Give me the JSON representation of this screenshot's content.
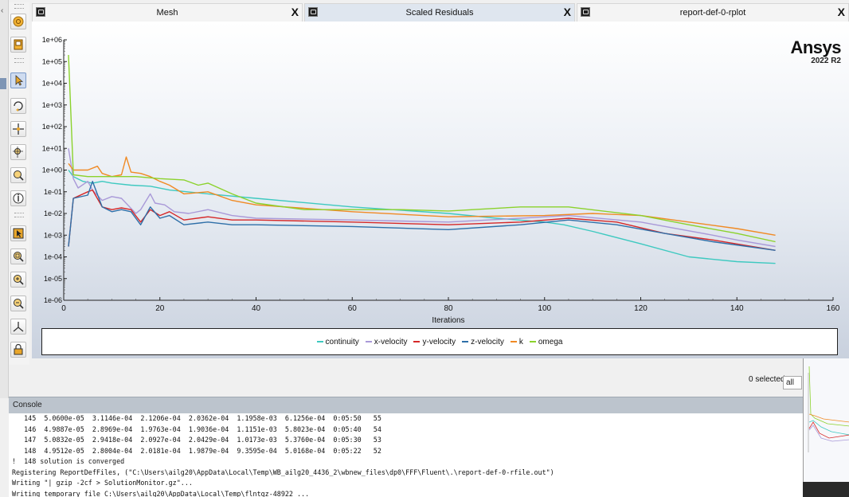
{
  "tabs": [
    {
      "label": "Mesh"
    },
    {
      "label": "Scaled Residuals"
    },
    {
      "label": "report-def-0-rplot"
    }
  ],
  "tab_close_glyph": "X",
  "brand": {
    "logo": "Ansys",
    "version": "2022 R2"
  },
  "toolbar_icons": [
    "mesh-display-icon",
    "graphics-icon",
    "pointer-icon",
    "rotate-icon",
    "pan-icon",
    "zoom-in-out-icon",
    "zoom-to-area-icon",
    "probe-icon",
    "select-icon",
    "fit-icon",
    "zoom-in-icon",
    "zoom-out-icon",
    "axes-icon",
    "lock-icon"
  ],
  "chart_data": {
    "type": "line",
    "xlabel": "Iterations",
    "ylabel": "",
    "xlim": [
      0,
      160
    ],
    "ylim_log10": [
      -6,
      6
    ],
    "y_scale": "log",
    "x_ticks": [
      0,
      20,
      40,
      60,
      80,
      100,
      120,
      140,
      160
    ],
    "y_tick_labels": [
      "1e+06",
      "1e+05",
      "1e+04",
      "1e+03",
      "1e+02",
      "1e+01",
      "1e+00",
      "1e-01",
      "1e-02",
      "1e-03",
      "1e-04",
      "1e-05",
      "1e-06"
    ],
    "grid": false,
    "legend": "bottom",
    "series": [
      {
        "name": "continuity",
        "color": "#3ec9c0",
        "points": [
          [
            1,
            1.0
          ],
          [
            2,
            0.5
          ],
          [
            4,
            0.3
          ],
          [
            6,
            0.25
          ],
          [
            8,
            0.3
          ],
          [
            10,
            0.25
          ],
          [
            14,
            0.2
          ],
          [
            18,
            0.18
          ],
          [
            22,
            0.12
          ],
          [
            30,
            0.08
          ],
          [
            40,
            0.05
          ],
          [
            60,
            0.02
          ],
          [
            80,
            0.01
          ],
          [
            90,
            0.006
          ],
          [
            100,
            0.004
          ],
          [
            104,
            0.003
          ],
          [
            110,
            0.0015
          ],
          [
            120,
            0.0004
          ],
          [
            130,
            0.0001
          ],
          [
            140,
            6e-05
          ],
          [
            148,
            5e-05
          ]
        ]
      },
      {
        "name": "x-velocity",
        "color": "#a999d8",
        "points": [
          [
            1,
            10.0
          ],
          [
            2,
            0.4
          ],
          [
            3,
            0.15
          ],
          [
            5,
            0.3
          ],
          [
            6,
            0.12
          ],
          [
            8,
            0.04
          ],
          [
            10,
            0.06
          ],
          [
            12,
            0.05
          ],
          [
            15,
            0.01
          ],
          [
            16,
            0.015
          ],
          [
            18,
            0.08
          ],
          [
            19,
            0.03
          ],
          [
            21,
            0.025
          ],
          [
            23,
            0.012
          ],
          [
            26,
            0.01
          ],
          [
            30,
            0.015
          ],
          [
            35,
            0.008
          ],
          [
            40,
            0.006
          ],
          [
            60,
            0.005
          ],
          [
            80,
            0.004
          ],
          [
            95,
            0.006
          ],
          [
            105,
            0.008
          ],
          [
            120,
            0.004
          ],
          [
            135,
            0.001
          ],
          [
            140,
            0.0006
          ],
          [
            148,
            0.0003
          ]
        ]
      },
      {
        "name": "y-velocity",
        "color": "#d62828",
        "points": [
          [
            1,
            0.0003
          ],
          [
            2,
            0.05
          ],
          [
            5,
            0.1
          ],
          [
            6,
            0.12
          ],
          [
            8,
            0.02
          ],
          [
            10,
            0.015
          ],
          [
            12,
            0.018
          ],
          [
            14,
            0.015
          ],
          [
            16,
            0.004
          ],
          [
            18,
            0.015
          ],
          [
            20,
            0.008
          ],
          [
            22,
            0.012
          ],
          [
            25,
            0.005
          ],
          [
            30,
            0.007
          ],
          [
            35,
            0.005
          ],
          [
            40,
            0.005
          ],
          [
            60,
            0.004
          ],
          [
            80,
            0.003
          ],
          [
            95,
            0.004
          ],
          [
            105,
            0.006
          ],
          [
            115,
            0.004
          ],
          [
            125,
            0.0012
          ],
          [
            135,
            0.0006
          ],
          [
            148,
            0.0002
          ]
        ]
      },
      {
        "name": "z-velocity",
        "color": "#2e6fa8",
        "points": [
          [
            1,
            0.0003
          ],
          [
            2,
            0.05
          ],
          [
            5,
            0.07
          ],
          [
            6,
            0.3
          ],
          [
            8,
            0.02
          ],
          [
            10,
            0.012
          ],
          [
            12,
            0.015
          ],
          [
            14,
            0.012
          ],
          [
            16,
            0.003
          ],
          [
            18,
            0.02
          ],
          [
            20,
            0.006
          ],
          [
            22,
            0.008
          ],
          [
            25,
            0.003
          ],
          [
            30,
            0.004
          ],
          [
            35,
            0.003
          ],
          [
            40,
            0.003
          ],
          [
            60,
            0.0025
          ],
          [
            80,
            0.0018
          ],
          [
            95,
            0.003
          ],
          [
            105,
            0.005
          ],
          [
            115,
            0.003
          ],
          [
            125,
            0.0012
          ],
          [
            135,
            0.0005
          ],
          [
            148,
            0.0002
          ]
        ]
      },
      {
        "name": "k",
        "color": "#f08a24",
        "points": [
          [
            1,
            2.0
          ],
          [
            2,
            1.0
          ],
          [
            5,
            1.0
          ],
          [
            7,
            1.5
          ],
          [
            8,
            0.7
          ],
          [
            10,
            0.5
          ],
          [
            12,
            0.6
          ],
          [
            13,
            4.0
          ],
          [
            14,
            0.8
          ],
          [
            16,
            0.7
          ],
          [
            18,
            0.5
          ],
          [
            20,
            0.3
          ],
          [
            22,
            0.2
          ],
          [
            25,
            0.08
          ],
          [
            30,
            0.1
          ],
          [
            35,
            0.04
          ],
          [
            40,
            0.025
          ],
          [
            60,
            0.012
          ],
          [
            80,
            0.007
          ],
          [
            100,
            0.008
          ],
          [
            110,
            0.01
          ],
          [
            120,
            0.008
          ],
          [
            130,
            0.004
          ],
          [
            140,
            0.002
          ],
          [
            148,
            0.001
          ]
        ]
      },
      {
        "name": "omega",
        "color": "#8bd22c",
        "points": [
          [
            1,
            200000
          ],
          [
            2,
            0.6
          ],
          [
            5,
            0.5
          ],
          [
            10,
            0.5
          ],
          [
            15,
            0.5
          ],
          [
            20,
            0.4
          ],
          [
            25,
            0.35
          ],
          [
            28,
            0.2
          ],
          [
            30,
            0.25
          ],
          [
            35,
            0.08
          ],
          [
            40,
            0.03
          ],
          [
            50,
            0.015
          ],
          [
            70,
            0.015
          ],
          [
            80,
            0.013
          ],
          [
            95,
            0.02
          ],
          [
            105,
            0.02
          ],
          [
            120,
            0.008
          ],
          [
            130,
            0.003
          ],
          [
            140,
            0.0012
          ],
          [
            148,
            0.0005
          ]
        ]
      }
    ]
  },
  "selection": {
    "count_text": "0 selected",
    "value": "all"
  },
  "console": {
    "title": "Console",
    "lines": [
      "   145  5.0600e-05  3.1146e-04  2.1206e-04  2.0362e-04  1.1958e-03  6.1256e-04  0:05:50   55",
      "   146  4.9887e-05  2.8969e-04  1.9763e-04  1.9036e-04  1.1151e-03  5.8023e-04  0:05:40   54",
      "   147  5.0832e-05  2.9418e-04  2.0927e-04  2.0429e-04  1.0173e-03  5.3760e-04  0:05:30   53",
      "   148  4.9512e-05  2.8004e-04  2.0181e-04  1.9879e-04  9.3595e-04  5.0168e-04  0:05:22   52",
      "!  148 solution is converged",
      "Registering ReportDefFiles, (\"C:\\Users\\ailg20\\AppData\\Local\\Temp\\WB_ailg20_4436_2\\wbnew_files\\dp0\\FFF\\Fluent\\.\\report-def-0-rfile.out\")",
      "Writing \"| gzip -2cf > SolutionMonitor.gz\"...",
      "Writing temporary file C:\\Users\\ailg20\\AppData\\Local\\Temp\\flntgz-48922 ..."
    ]
  }
}
